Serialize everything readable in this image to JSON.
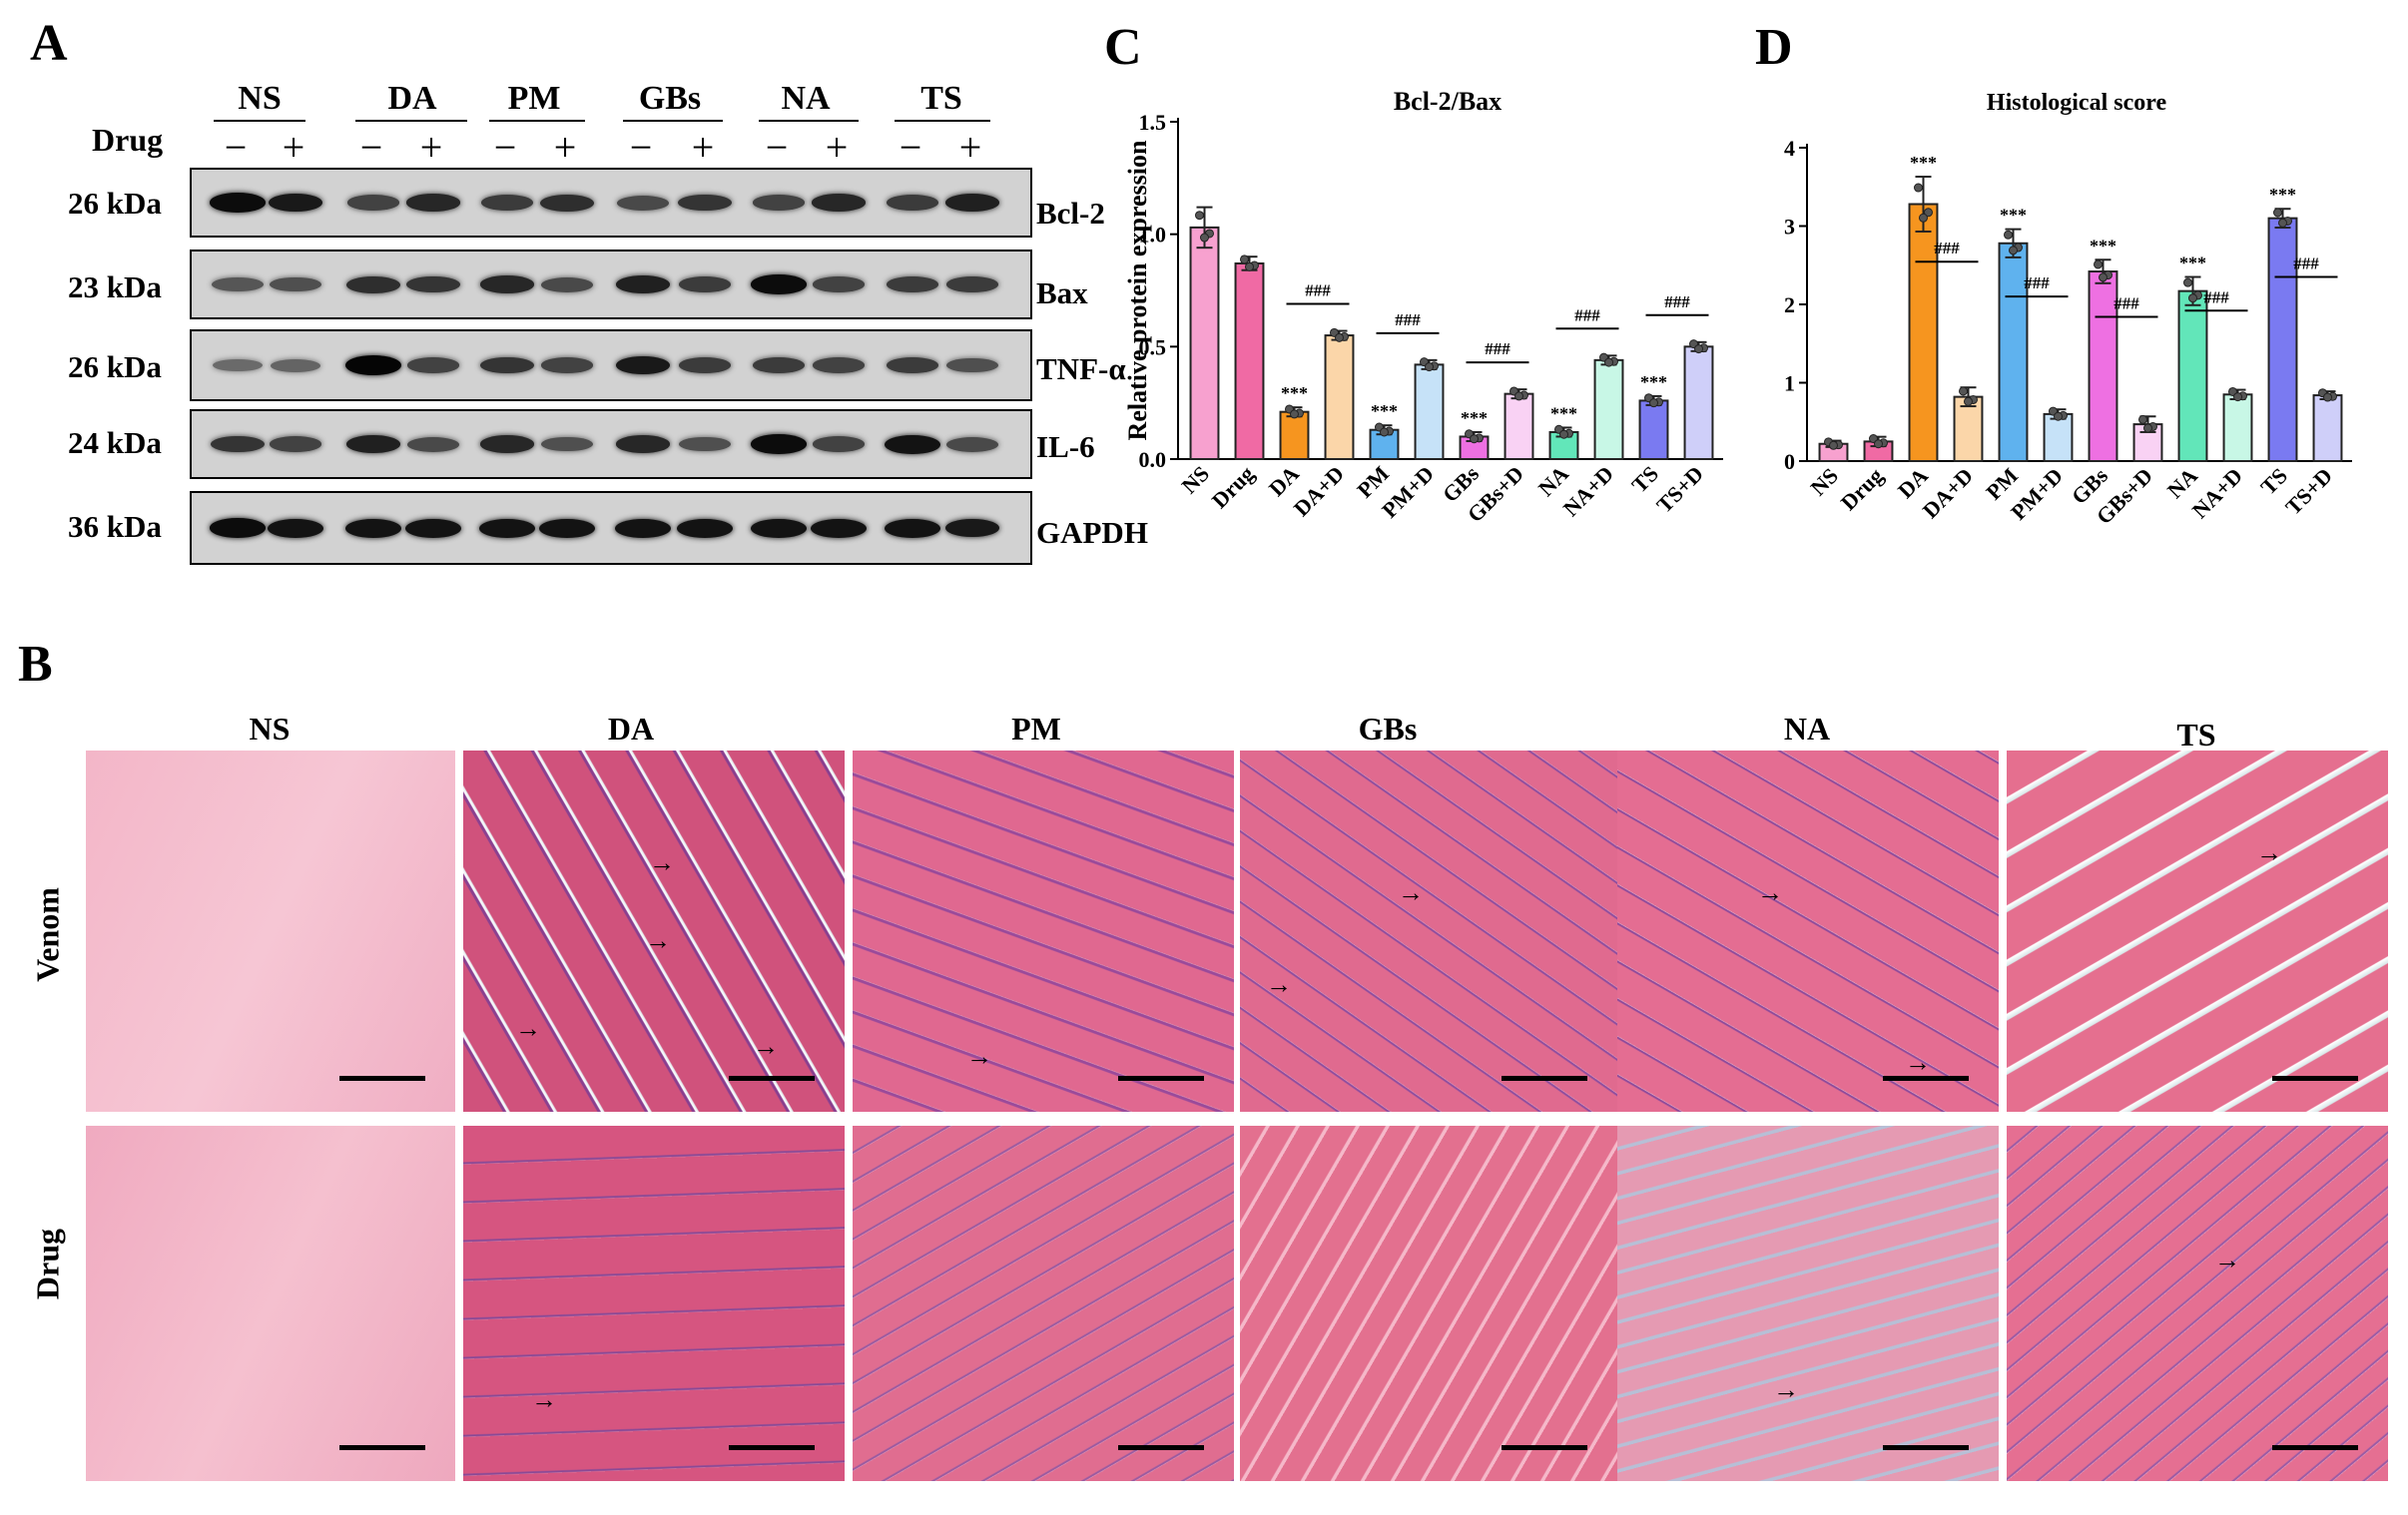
{
  "panels": {
    "a": "A",
    "b": "B",
    "c": "C",
    "d": "D"
  },
  "blot": {
    "groups": [
      "NS",
      "DA",
      "PM",
      "GBs",
      "NA",
      "TS"
    ],
    "drug_label": "Drug",
    "minus": "−",
    "plus": "+",
    "rows": [
      {
        "kda": "26 kDa",
        "protein": "Bcl-2"
      },
      {
        "kda": "23 kDa",
        "protein": "Bax"
      },
      {
        "kda": "26 kDa",
        "protein": "TNF-α"
      },
      {
        "kda": "24 kDa",
        "protein": "IL-6"
      },
      {
        "kda": "36 kDa",
        "protein": "GAPDH"
      }
    ]
  },
  "histology": {
    "columns": [
      "NS",
      "DA",
      "PM",
      "GBs",
      "NA",
      "TS"
    ],
    "rows": [
      "Venom",
      "Drug"
    ]
  },
  "colors": {
    "NS": "#f7a1cf",
    "Drug": "#f06aa4",
    "DA": "#f6951f",
    "DA+D": "#fbd6a9",
    "PM": "#5fb2ee",
    "PM+D": "#c6e2f8",
    "GBs": "#ee70e2",
    "GBs+D": "#f9d2f4",
    "NA": "#62e6b9",
    "NA+D": "#c8f7e6",
    "TS": "#7a7af1",
    "TS+D": "#cfcff9",
    "tissue_pink": "#e8739a",
    "tissue_light": "#f6b8cc",
    "nuclei": "#6a3fa0"
  },
  "chart_data": [
    {
      "type": "bar",
      "title": "Bcl-2/Bax",
      "ylabel": "Relative protein expression",
      "xlabel": "",
      "categories": [
        "NS",
        "Drug",
        "DA",
        "DA+D",
        "PM",
        "PM+D",
        "GBs",
        "GBs+D",
        "NA",
        "NA+D",
        "TS",
        "TS+D"
      ],
      "values": [
        1.03,
        0.87,
        0.21,
        0.55,
        0.13,
        0.42,
        0.1,
        0.29,
        0.12,
        0.44,
        0.26,
        0.5
      ],
      "errors": [
        0.09,
        0.03,
        0.02,
        0.02,
        0.02,
        0.02,
        0.02,
        0.02,
        0.02,
        0.02,
        0.02,
        0.02
      ],
      "ylim": [
        0,
        1.5
      ],
      "yticks": [
        "0.0",
        "0.5",
        "1.0",
        "1.5"
      ],
      "stars": {
        "DA": "***",
        "PM": "***",
        "GBs": "***",
        "NA": "***",
        "TS": "***"
      },
      "comparison_label": "###"
    },
    {
      "type": "bar",
      "title": "Histological score",
      "ylabel": "",
      "xlabel": "",
      "categories": [
        "NS",
        "Drug",
        "DA",
        "DA+D",
        "PM",
        "PM+D",
        "GBs",
        "GBs+D",
        "NA",
        "NA+D",
        "TS",
        "TS+D"
      ],
      "values": [
        0.22,
        0.25,
        3.28,
        0.82,
        2.78,
        0.6,
        2.42,
        0.47,
        2.17,
        0.85,
        3.1,
        0.84
      ],
      "errors": [
        0.04,
        0.06,
        0.35,
        0.12,
        0.18,
        0.06,
        0.15,
        0.1,
        0.18,
        0.06,
        0.12,
        0.05
      ],
      "ylim": [
        0,
        4
      ],
      "yticks": [
        "0",
        "1",
        "2",
        "3",
        "4"
      ],
      "stars": {
        "DA": "***",
        "PM": "***",
        "GBs": "***",
        "NA": "***",
        "TS": "***"
      },
      "comparison_label": "###"
    }
  ]
}
